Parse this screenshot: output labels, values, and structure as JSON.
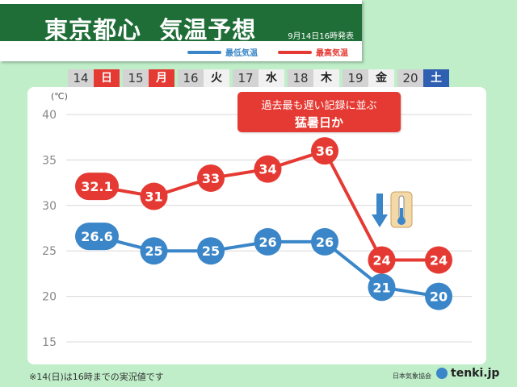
{
  "header": {
    "title": "東京都心  気温予想",
    "issued": "9月14日16時発表"
  },
  "legend": {
    "min_label": "最低気温",
    "max_label": "最高気温",
    "min_color": "#3a86c8",
    "max_color": "#e53a33"
  },
  "days": [
    {
      "num": "14",
      "wd": "日",
      "kind": "sun"
    },
    {
      "num": "15",
      "wd": "月",
      "kind": "hol"
    },
    {
      "num": "16",
      "wd": "火",
      "kind": "weekday"
    },
    {
      "num": "17",
      "wd": "水",
      "kind": "weekday"
    },
    {
      "num": "18",
      "wd": "木",
      "kind": "weekday"
    },
    {
      "num": "19",
      "wd": "金",
      "kind": "weekday"
    },
    {
      "num": "20",
      "wd": "土",
      "kind": "sat"
    }
  ],
  "unit": "(℃)",
  "callout": {
    "line1": "過去最も遅い記録に並ぶ",
    "line2": "猛暑日か"
  },
  "footnote": "※14(日)は16時までの実況値です",
  "credit": "日本気象協会",
  "brand": "tenki.jp",
  "chart_data": {
    "type": "line",
    "categories": [
      "14",
      "15",
      "16",
      "17",
      "18",
      "19",
      "20"
    ],
    "series": [
      {
        "name": "最高気温",
        "values": [
          32.1,
          31,
          33,
          34,
          36,
          24,
          24
        ],
        "labels": [
          "32.1",
          "31",
          "33",
          "34",
          "36",
          "24",
          "24"
        ],
        "color": "#e53a33"
      },
      {
        "name": "最低気温",
        "values": [
          26.6,
          25,
          25,
          26,
          26,
          21,
          20
        ],
        "labels": [
          "26.6",
          "25",
          "25",
          "26",
          "26",
          "21",
          "20"
        ],
        "color": "#3a86c8"
      }
    ],
    "ylim": [
      15,
      40
    ],
    "yticks": [
      "15",
      "20",
      "25",
      "30",
      "35",
      "40"
    ],
    "grid": true
  }
}
